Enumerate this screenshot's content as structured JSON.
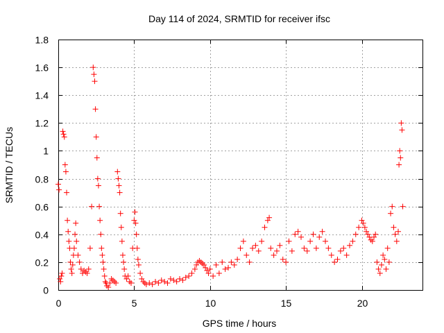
{
  "chart_data": {
    "type": "scatter",
    "title": "Day 114 of 2024, SRMTID for receiver ifsc",
    "xlabel": "GPS time / hours",
    "ylabel": "SRMTID / TECUs",
    "xlim": [
      0,
      24
    ],
    "ylim": [
      0,
      1.8
    ],
    "xticks": [
      0,
      5,
      10,
      15,
      20
    ],
    "xtick_labels": [
      "0",
      "5",
      "10",
      "15",
      "20"
    ],
    "yticks": [
      0,
      0.2,
      0.4,
      0.6,
      0.8,
      1.0,
      1.2,
      1.4,
      1.6,
      1.8
    ],
    "ytick_labels": [
      "0",
      "0.2",
      "0.4",
      "0.6",
      "0.8",
      "1",
      "1.2",
      "1.4",
      "1.6",
      "1.8"
    ],
    "grid": true,
    "marker": "plus",
    "color": "#ff0000",
    "series": [
      {
        "name": "SRMTID",
        "x": [
          0.0,
          0.05,
          0.1,
          0.15,
          0.2,
          0.25,
          0.3,
          0.35,
          0.4,
          0.45,
          0.5,
          0.55,
          0.6,
          0.65,
          0.7,
          0.75,
          0.8,
          0.85,
          0.9,
          0.95,
          1.0,
          1.05,
          1.1,
          1.15,
          1.2,
          1.3,
          1.4,
          1.5,
          1.6,
          1.7,
          1.8,
          1.9,
          2.0,
          2.1,
          2.2,
          2.3,
          2.35,
          2.4,
          2.45,
          2.5,
          2.55,
          2.6,
          2.65,
          2.7,
          2.75,
          2.8,
          2.85,
          2.9,
          2.95,
          3.0,
          3.05,
          3.1,
          3.15,
          3.2,
          3.3,
          3.4,
          3.5,
          3.6,
          3.7,
          3.8,
          3.9,
          3.95,
          4.0,
          4.05,
          4.1,
          4.15,
          4.2,
          4.25,
          4.3,
          4.35,
          4.4,
          4.5,
          4.6,
          4.7,
          4.8,
          4.9,
          5.0,
          5.05,
          5.1,
          5.15,
          5.2,
          5.25,
          5.3,
          5.4,
          5.5,
          5.6,
          5.7,
          5.8,
          6.0,
          6.2,
          6.4,
          6.6,
          6.8,
          7.0,
          7.2,
          7.4,
          7.6,
          7.8,
          8.0,
          8.2,
          8.4,
          8.6,
          8.8,
          9.0,
          9.1,
          9.2,
          9.3,
          9.4,
          9.5,
          9.6,
          9.7,
          9.8,
          9.9,
          10.0,
          10.2,
          10.4,
          10.6,
          10.8,
          11.0,
          11.2,
          11.4,
          11.6,
          11.8,
          12.0,
          12.2,
          12.4,
          12.6,
          12.8,
          13.0,
          13.2,
          13.4,
          13.6,
          13.8,
          13.9,
          14.0,
          14.2,
          14.4,
          14.6,
          14.8,
          15.0,
          15.2,
          15.4,
          15.6,
          15.8,
          16.0,
          16.2,
          16.4,
          16.6,
          16.8,
          17.0,
          17.2,
          17.4,
          17.6,
          17.8,
          18.0,
          18.2,
          18.4,
          18.6,
          18.8,
          19.0,
          19.2,
          19.4,
          19.6,
          19.8,
          20.0,
          20.1,
          20.2,
          20.3,
          20.4,
          20.5,
          20.6,
          20.7,
          20.8,
          20.9,
          21.0,
          21.1,
          21.2,
          21.3,
          21.4,
          21.5,
          21.6,
          21.7,
          21.8,
          21.9,
          22.0,
          22.1,
          22.2,
          22.3,
          22.4,
          22.45,
          22.5,
          22.55,
          22.6,
          22.65,
          22.7
        ],
        "y": [
          0.76,
          0.72,
          0.08,
          0.06,
          0.1,
          0.12,
          1.14,
          1.12,
          1.1,
          0.9,
          0.85,
          0.7,
          0.5,
          0.42,
          0.35,
          0.3,
          0.2,
          0.15,
          0.12,
          0.18,
          0.25,
          0.3,
          0.4,
          0.48,
          0.35,
          0.25,
          0.2,
          0.15,
          0.12,
          0.14,
          0.13,
          0.12,
          0.15,
          0.3,
          0.6,
          1.6,
          1.55,
          1.5,
          1.3,
          1.1,
          0.95,
          0.8,
          0.75,
          0.6,
          0.5,
          0.4,
          0.3,
          0.25,
          0.2,
          0.15,
          0.1,
          0.06,
          0.05,
          0.03,
          0.02,
          0.05,
          0.08,
          0.07,
          0.06,
          0.05,
          0.85,
          0.8,
          0.75,
          0.7,
          0.55,
          0.45,
          0.35,
          0.25,
          0.2,
          0.15,
          0.1,
          0.08,
          0.1,
          0.06,
          0.05,
          0.3,
          0.5,
          0.56,
          0.48,
          0.4,
          0.3,
          0.22,
          0.18,
          0.12,
          0.08,
          0.06,
          0.05,
          0.04,
          0.05,
          0.04,
          0.06,
          0.05,
          0.07,
          0.06,
          0.05,
          0.08,
          0.07,
          0.06,
          0.08,
          0.07,
          0.09,
          0.1,
          0.12,
          0.15,
          0.18,
          0.2,
          0.21,
          0.2,
          0.19,
          0.18,
          0.16,
          0.14,
          0.12,
          0.15,
          0.1,
          0.18,
          0.12,
          0.2,
          0.15,
          0.16,
          0.2,
          0.18,
          0.22,
          0.3,
          0.35,
          0.25,
          0.2,
          0.3,
          0.32,
          0.28,
          0.35,
          0.45,
          0.5,
          0.52,
          0.3,
          0.25,
          0.28,
          0.32,
          0.22,
          0.2,
          0.35,
          0.28,
          0.4,
          0.42,
          0.38,
          0.3,
          0.28,
          0.35,
          0.4,
          0.3,
          0.38,
          0.42,
          0.35,
          0.3,
          0.25,
          0.2,
          0.22,
          0.28,
          0.3,
          0.25,
          0.32,
          0.35,
          0.4,
          0.45,
          0.5,
          0.48,
          0.45,
          0.42,
          0.4,
          0.38,
          0.36,
          0.35,
          0.38,
          0.4,
          0.2,
          0.15,
          0.12,
          0.18,
          0.25,
          0.22,
          0.15,
          0.3,
          0.2,
          0.55,
          0.6,
          0.45,
          0.4,
          0.35,
          0.42,
          0.9,
          1.0,
          0.95,
          1.2,
          1.15,
          0.6
        ]
      }
    ]
  }
}
